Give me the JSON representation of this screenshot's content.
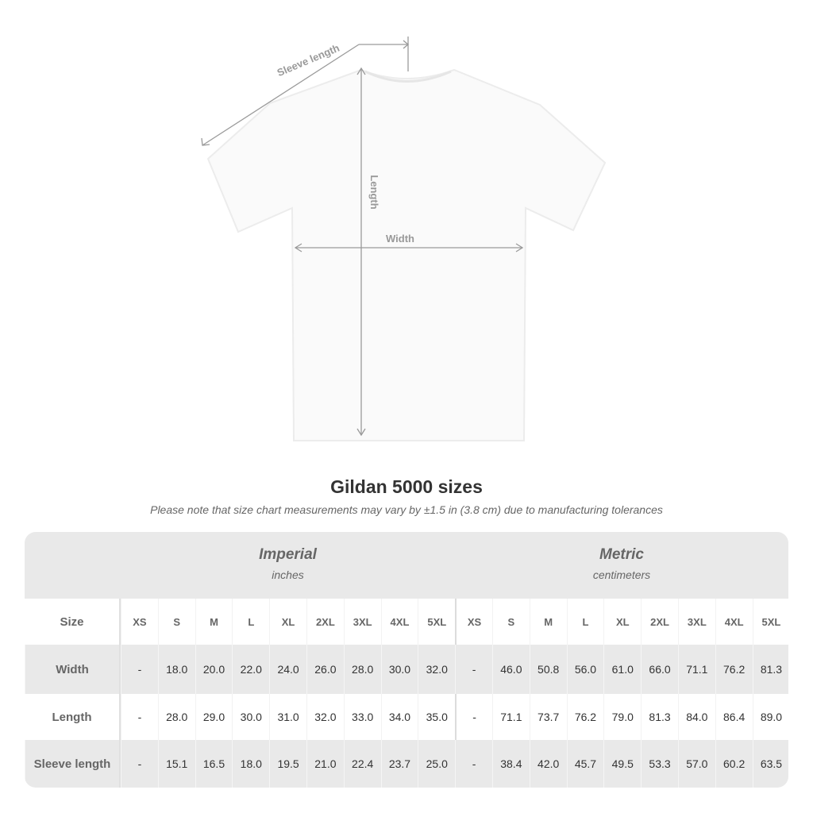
{
  "diagram": {
    "sleeve_label": "Sleeve length",
    "length_label": "Length",
    "width_label": "Width"
  },
  "title": "Gildan 5000 sizes",
  "note": "Please note that size chart measurements may vary by ±1.5 in (3.8 cm) due to manufacturing tolerances",
  "table": {
    "imperial": {
      "name": "Imperial",
      "unit": "inches"
    },
    "metric": {
      "name": "Metric",
      "unit": "centimeters"
    },
    "size_label": "Size",
    "sizes": [
      "XS",
      "S",
      "M",
      "L",
      "XL",
      "2XL",
      "3XL",
      "4XL",
      "5XL"
    ],
    "rows": [
      {
        "label": "Width",
        "imperial": [
          "-",
          "18.0",
          "20.0",
          "22.0",
          "24.0",
          "26.0",
          "28.0",
          "30.0",
          "32.0"
        ],
        "metric": [
          "-",
          "46.0",
          "50.8",
          "56.0",
          "61.0",
          "66.0",
          "71.1",
          "76.2",
          "81.3"
        ]
      },
      {
        "label": "Length",
        "imperial": [
          "-",
          "28.0",
          "29.0",
          "30.0",
          "31.0",
          "32.0",
          "33.0",
          "34.0",
          "35.0"
        ],
        "metric": [
          "-",
          "71.1",
          "73.7",
          "76.2",
          "79.0",
          "81.3",
          "84.0",
          "86.4",
          "89.0"
        ]
      },
      {
        "label": "Sleeve length",
        "imperial": [
          "-",
          "15.1",
          "16.5",
          "18.0",
          "19.5",
          "21.0",
          "22.4",
          "23.7",
          "25.0"
        ],
        "metric": [
          "-",
          "38.4",
          "42.0",
          "45.7",
          "49.5",
          "53.3",
          "57.0",
          "60.2",
          "63.5"
        ]
      }
    ]
  }
}
